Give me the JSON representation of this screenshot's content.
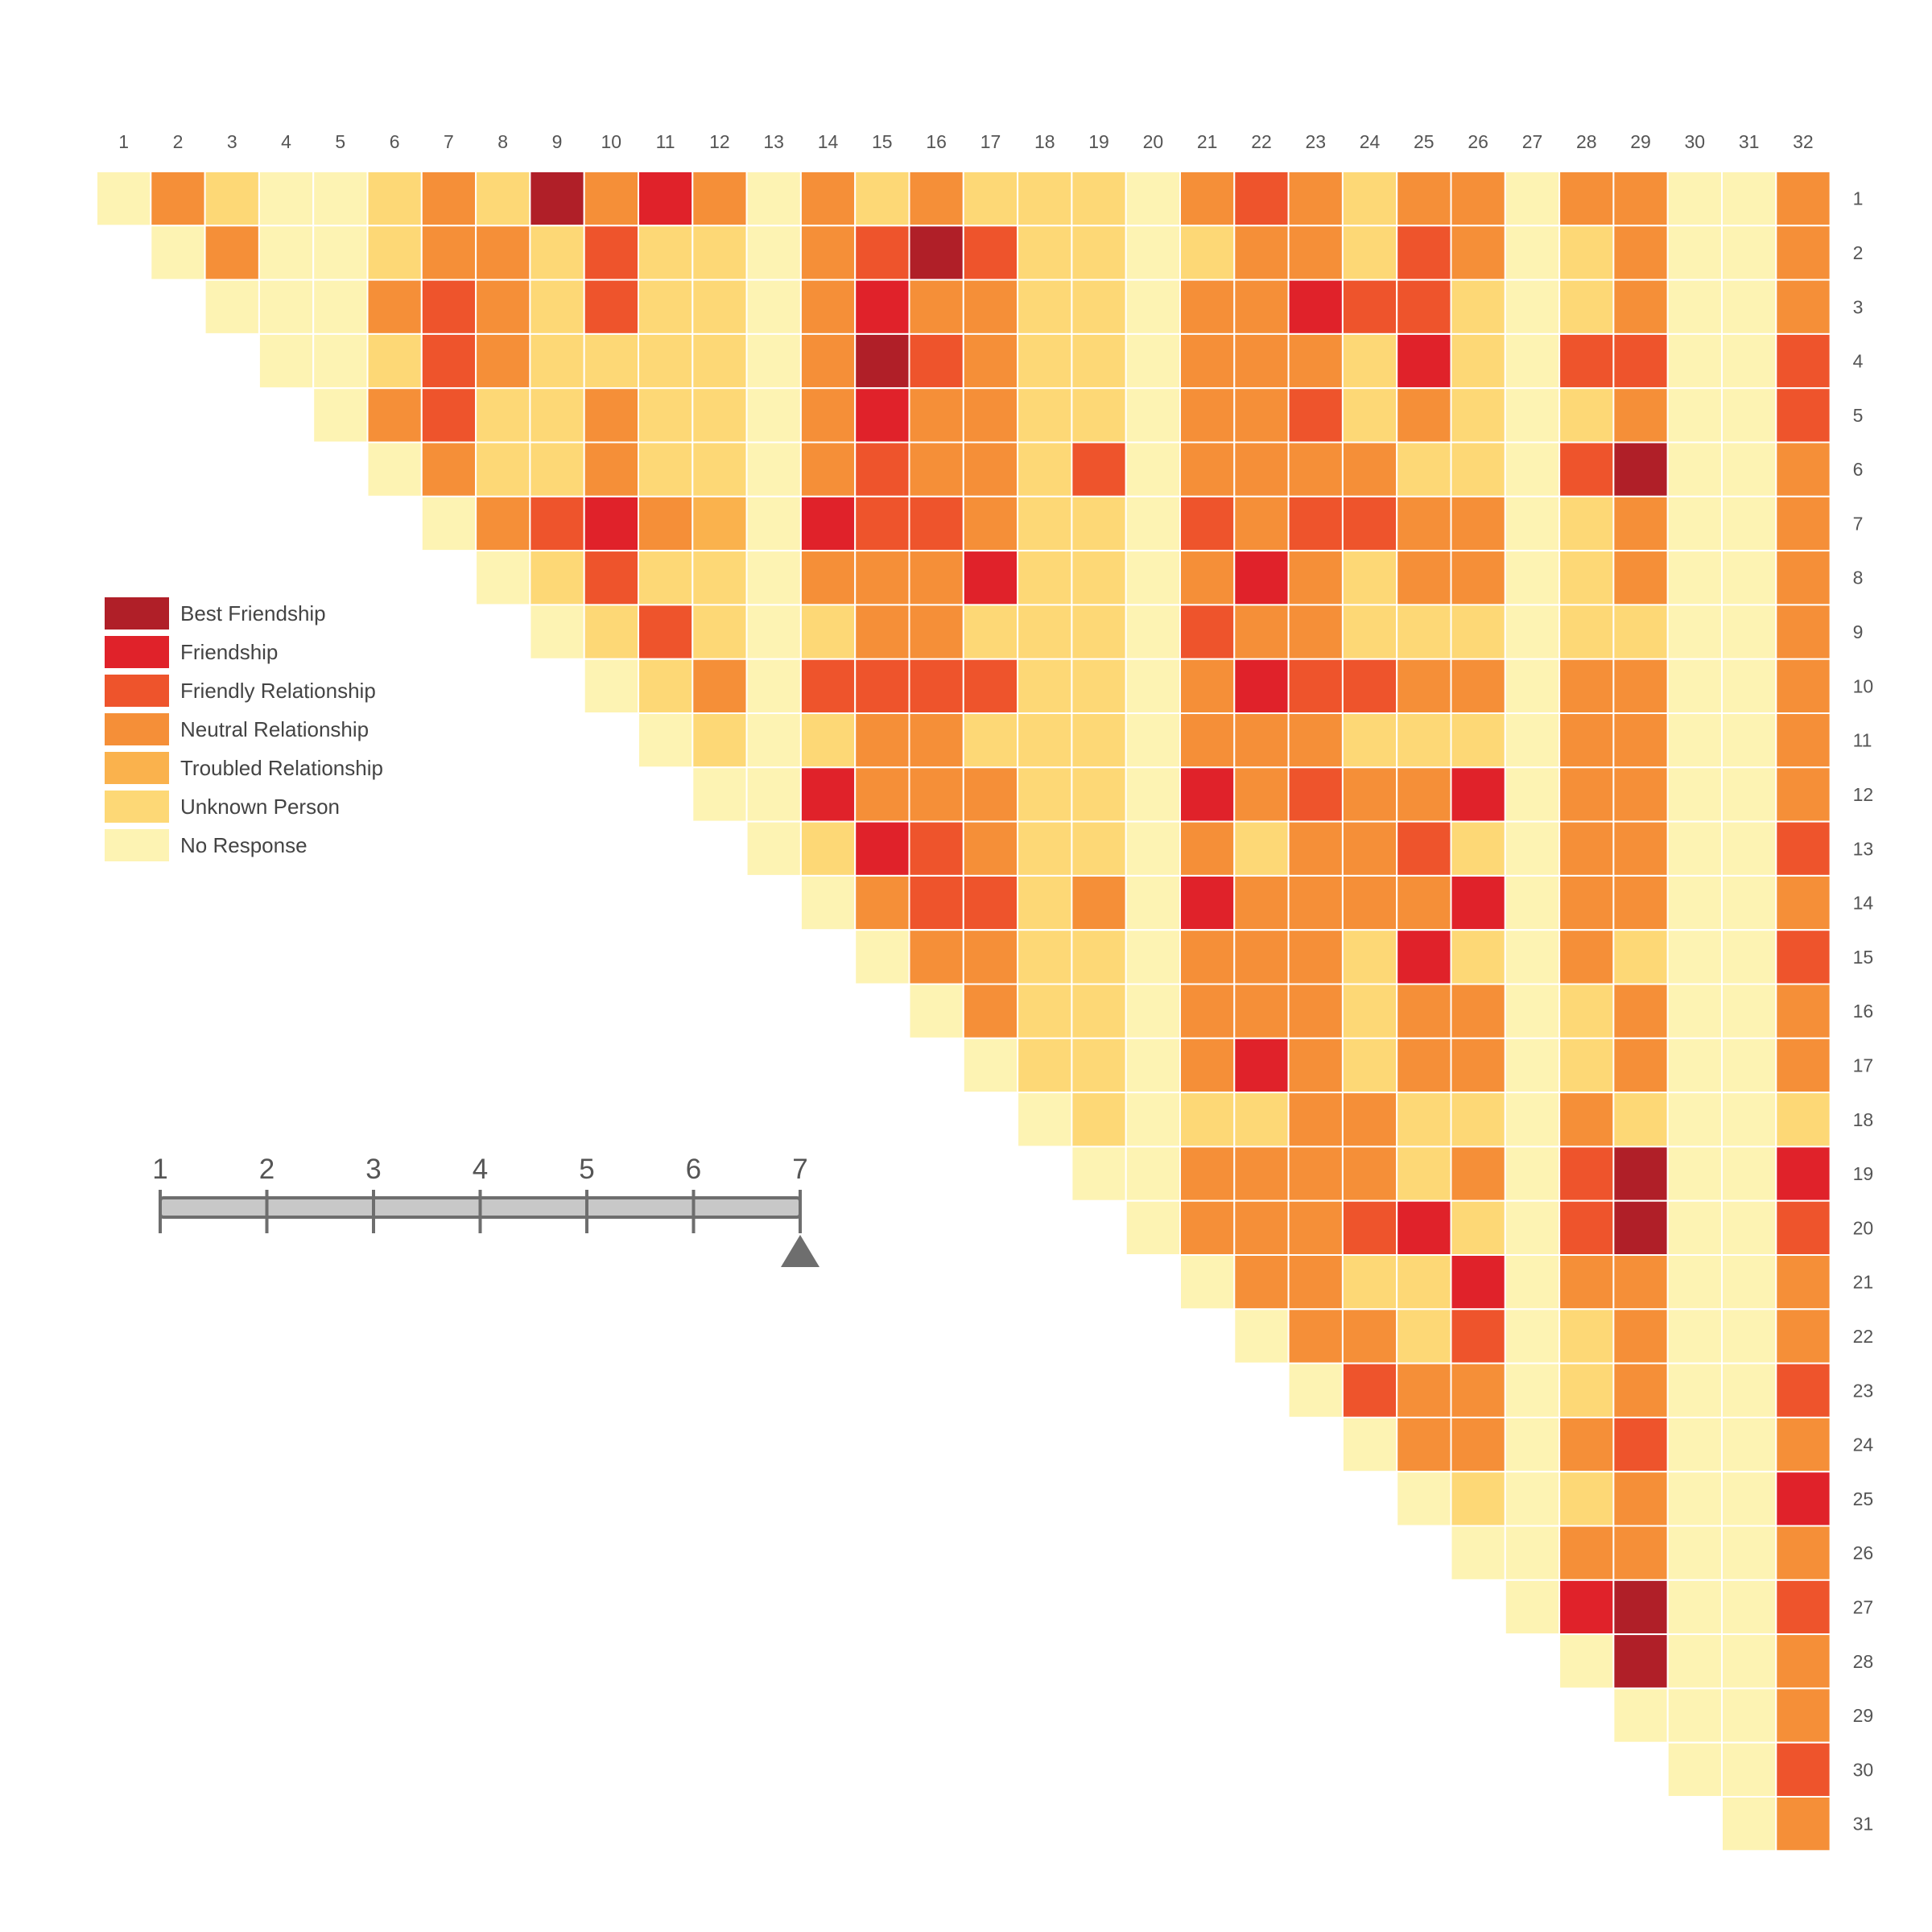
{
  "chart_data": {
    "type": "heatmap",
    "matrix": "upper-triangular",
    "columns": [
      "1",
      "2",
      "3",
      "4",
      "5",
      "6",
      "7",
      "8",
      "9",
      "10",
      "11",
      "12",
      "13",
      "14",
      "15",
      "16",
      "17",
      "18",
      "19",
      "20",
      "21",
      "22",
      "23",
      "24",
      "25",
      "26",
      "27",
      "28",
      "29",
      "30",
      "31",
      "32"
    ],
    "rows": [
      "1",
      "2",
      "3",
      "4",
      "5",
      "6",
      "7",
      "8",
      "9",
      "10",
      "11",
      "12",
      "13",
      "14",
      "15",
      "16",
      "17",
      "18",
      "19",
      "20",
      "21",
      "22",
      "23",
      "24",
      "25",
      "26",
      "27",
      "28",
      "29",
      "30",
      "31"
    ],
    "categories": [
      {
        "code": 0,
        "label": "Best Friendship",
        "color": "#b01f28"
      },
      {
        "code": 1,
        "label": "Friendship",
        "color": "#e0222a"
      },
      {
        "code": 2,
        "label": "Friendly Relationship",
        "color": "#ee542c"
      },
      {
        "code": 3,
        "label": "Neutral Relationship",
        "color": "#f58f38"
      },
      {
        "code": 4,
        "label": "Troubled Relationship",
        "color": "#fab24d"
      },
      {
        "code": 5,
        "label": "Unknown Person",
        "color": "#fdd876"
      },
      {
        "code": 6,
        "label": "No Response",
        "color": "#fdf3b3"
      }
    ],
    "values": [
      [
        6,
        3,
        5,
        6,
        6,
        5,
        3,
        5,
        0,
        3,
        1,
        3,
        6,
        3,
        5,
        3,
        5,
        5,
        5,
        6,
        3,
        2,
        3,
        5,
        3,
        3,
        6,
        3,
        3,
        6,
        6,
        3
      ],
      [
        6,
        3,
        6,
        6,
        5,
        3,
        3,
        5,
        2,
        5,
        5,
        6,
        3,
        2,
        0,
        2,
        5,
        5,
        6,
        5,
        3,
        3,
        5,
        2,
        3,
        6,
        5,
        3,
        6,
        6,
        3
      ],
      [
        6,
        6,
        6,
        3,
        2,
        3,
        5,
        2,
        5,
        5,
        6,
        3,
        1,
        3,
        3,
        5,
        5,
        6,
        3,
        3,
        1,
        2,
        2,
        5,
        6,
        5,
        3,
        6,
        6,
        3
      ],
      [
        6,
        6,
        5,
        2,
        3,
        5,
        5,
        5,
        5,
        6,
        3,
        0,
        2,
        3,
        5,
        5,
        6,
        3,
        3,
        3,
        5,
        1,
        5,
        6,
        2,
        2,
        6,
        6,
        2
      ],
      [
        6,
        3,
        2,
        5,
        5,
        3,
        5,
        5,
        6,
        3,
        1,
        3,
        3,
        5,
        5,
        6,
        3,
        3,
        2,
        5,
        3,
        5,
        6,
        5,
        3,
        6,
        6,
        2
      ],
      [
        6,
        3,
        5,
        5,
        3,
        5,
        5,
        6,
        3,
        2,
        3,
        3,
        5,
        2,
        6,
        3,
        3,
        3,
        3,
        5,
        5,
        6,
        2,
        0,
        6,
        6,
        3
      ],
      [
        6,
        3,
        2,
        1,
        3,
        4,
        6,
        1,
        2,
        2,
        3,
        5,
        5,
        6,
        2,
        3,
        2,
        2,
        3,
        3,
        6,
        5,
        3,
        6,
        6,
        3
      ],
      [
        6,
        5,
        2,
        5,
        5,
        6,
        3,
        3,
        3,
        1,
        5,
        5,
        6,
        3,
        1,
        3,
        5,
        3,
        3,
        6,
        5,
        3,
        6,
        6,
        3
      ],
      [
        6,
        5,
        2,
        5,
        6,
        5,
        3,
        3,
        5,
        5,
        5,
        6,
        2,
        3,
        3,
        5,
        5,
        5,
        6,
        5,
        5,
        6,
        6,
        3
      ],
      [
        6,
        5,
        3,
        6,
        2,
        2,
        2,
        2,
        5,
        5,
        6,
        3,
        1,
        2,
        2,
        3,
        3,
        6,
        3,
        3,
        6,
        6,
        3
      ],
      [
        6,
        5,
        6,
        5,
        3,
        3,
        5,
        5,
        5,
        6,
        3,
        3,
        3,
        5,
        5,
        5,
        6,
        3,
        3,
        6,
        6,
        3
      ],
      [
        6,
        6,
        1,
        3,
        3,
        3,
        5,
        5,
        6,
        1,
        3,
        2,
        3,
        3,
        1,
        6,
        3,
        3,
        6,
        6,
        3
      ],
      [
        6,
        5,
        1,
        2,
        3,
        5,
        5,
        6,
        3,
        5,
        3,
        3,
        2,
        5,
        6,
        3,
        3,
        6,
        6,
        2
      ],
      [
        6,
        3,
        2,
        2,
        5,
        3,
        6,
        1,
        3,
        3,
        3,
        3,
        1,
        6,
        3,
        3,
        6,
        6,
        3
      ],
      [
        6,
        3,
        3,
        5,
        5,
        6,
        3,
        3,
        3,
        5,
        1,
        5,
        6,
        3,
        5,
        6,
        6,
        2
      ],
      [
        6,
        3,
        5,
        5,
        6,
        3,
        3,
        3,
        5,
        3,
        3,
        6,
        5,
        3,
        6,
        6,
        3
      ],
      [
        6,
        5,
        5,
        6,
        3,
        1,
        3,
        5,
        3,
        3,
        6,
        5,
        3,
        6,
        6,
        3
      ],
      [
        6,
        5,
        6,
        5,
        5,
        3,
        3,
        5,
        5,
        6,
        3,
        5,
        6,
        6,
        5
      ],
      [
        6,
        6,
        3,
        3,
        3,
        3,
        5,
        3,
        6,
        2,
        0,
        6,
        6,
        1
      ],
      [
        6,
        3,
        3,
        3,
        2,
        1,
        5,
        6,
        2,
        0,
        6,
        6,
        2
      ],
      [
        6,
        3,
        3,
        5,
        5,
        1,
        6,
        3,
        3,
        6,
        6,
        3
      ],
      [
        6,
        3,
        3,
        5,
        2,
        6,
        5,
        3,
        6,
        6,
        3
      ],
      [
        6,
        2,
        3,
        3,
        6,
        5,
        3,
        6,
        6,
        2
      ],
      [
        6,
        3,
        3,
        6,
        3,
        2,
        6,
        6,
        3
      ],
      [
        6,
        5,
        6,
        5,
        3,
        6,
        6,
        1
      ],
      [
        6,
        6,
        3,
        3,
        6,
        6,
        3
      ],
      [
        6,
        1,
        0,
        6,
        6,
        2
      ],
      [
        6,
        0,
        6,
        6,
        3
      ],
      [
        6,
        6,
        6,
        3
      ],
      [
        6,
        6,
        2
      ],
      [
        6,
        3
      ]
    ],
    "slider": {
      "ticks": [
        "1",
        "2",
        "3",
        "4",
        "5",
        "6",
        "7"
      ],
      "value": 7
    }
  }
}
